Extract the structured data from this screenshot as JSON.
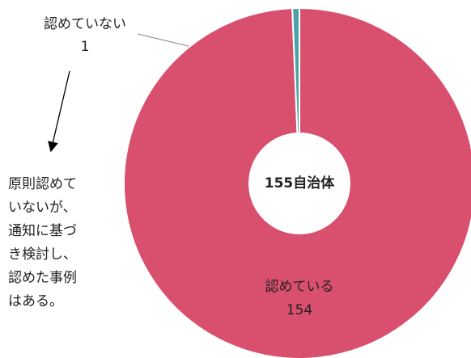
{
  "chart_data": {
    "type": "donut",
    "center_label": "155自治体",
    "categories": [
      "認めている",
      "認めていない"
    ],
    "values": [
      154,
      1
    ],
    "colors": [
      "#d94f6e",
      "#4aa3a3"
    ],
    "annotation_lines": [
      "原則認めて",
      "いないが、",
      "通知に基づ",
      "き検討し、",
      "認めた事例",
      "はある。"
    ]
  }
}
